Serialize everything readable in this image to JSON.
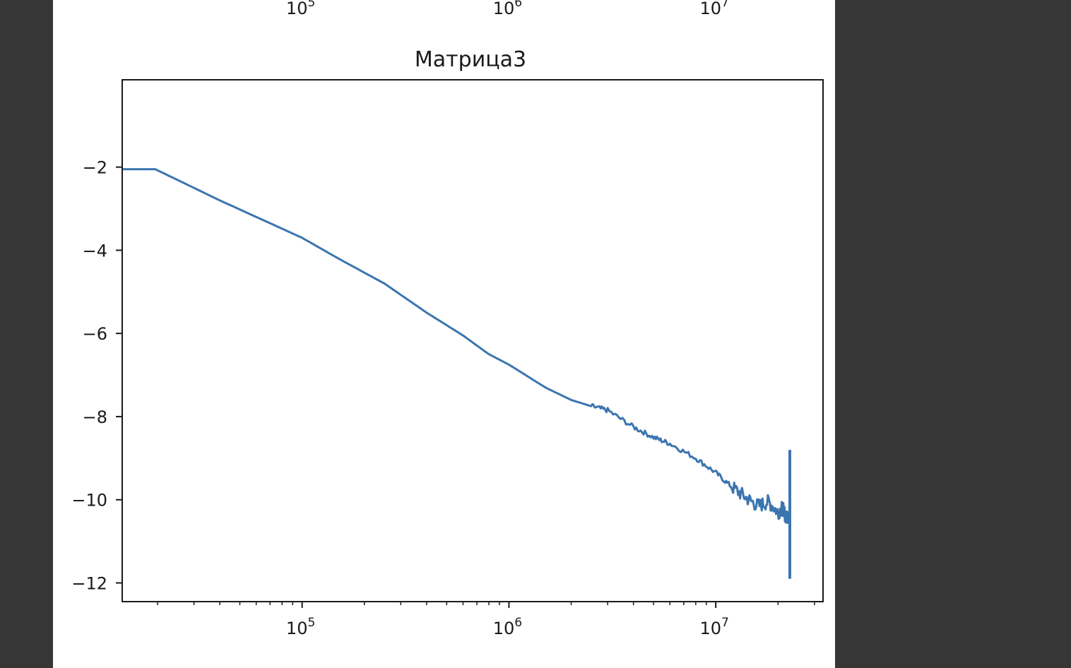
{
  "colors": {
    "background": "#363636",
    "panel": "#ffffff",
    "line": "#3b75af",
    "axis": "#1a1a1a"
  },
  "top_strip": {
    "tick_labels": [
      {
        "base": "10",
        "exp": "5",
        "value": 100000
      },
      {
        "base": "10",
        "exp": "6",
        "value": 1000000
      },
      {
        "base": "10",
        "exp": "7",
        "value": 10000000
      }
    ]
  },
  "chart_data": {
    "type": "line",
    "title": "Матрица3",
    "xlabel": "",
    "ylabel": "",
    "xscale": "log",
    "xlim": [
      13500,
      33000000
    ],
    "ylim": [
      0.1,
      -12.45
    ],
    "x_ticks": [
      {
        "base": "10",
        "exp": "5",
        "value": 100000
      },
      {
        "base": "10",
        "exp": "6",
        "value": 1000000
      },
      {
        "base": "10",
        "exp": "7",
        "value": 10000000
      }
    ],
    "y_ticks": [
      {
        "label": "−2",
        "value": -2
      },
      {
        "label": "−4",
        "value": -4
      },
      {
        "label": "−6",
        "value": -6
      },
      {
        "label": "−8",
        "value": -8
      },
      {
        "label": "−10",
        "value": -10
      },
      {
        "label": "−12",
        "value": -12
      }
    ],
    "grid": false,
    "legend": "none",
    "series": [
      {
        "color": "#3b75af",
        "x": [
          13500,
          19500,
          40000,
          100000,
          150000,
          250000,
          400000,
          600000,
          800000,
          1000000,
          1500000,
          2000000,
          2500000,
          3000000,
          4000000,
          5000000,
          6000000,
          8000000,
          10000000,
          12000000,
          14000000,
          16000000,
          18000000,
          20000000,
          21000000,
          22000000,
          22500000
        ],
        "y": [
          -2.05,
          -2.05,
          -2.8,
          -3.7,
          -4.2,
          -4.8,
          -5.5,
          -6.05,
          -6.5,
          -6.75,
          -7.3,
          -7.6,
          -7.75,
          -7.85,
          -8.25,
          -8.5,
          -8.65,
          -9.0,
          -9.35,
          -9.7,
          -9.95,
          -10.15,
          -10.05,
          -10.3,
          -10.2,
          -10.45,
          -10.3
        ],
        "tail_spike": {
          "x": 22800000,
          "min": -11.9,
          "max": -8.8
        }
      }
    ]
  }
}
